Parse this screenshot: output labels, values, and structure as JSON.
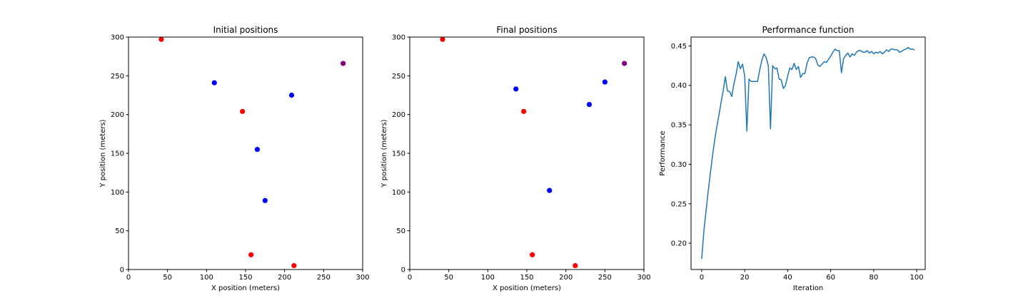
{
  "chart_data": [
    {
      "type": "scatter",
      "title": "Initial positions",
      "xlabel": "X position (meters)",
      "ylabel": "Y position (meters)",
      "xlim": [
        0,
        300
      ],
      "ylim": [
        0,
        300
      ],
      "xticks": [
        0,
        50,
        100,
        150,
        200,
        250,
        300
      ],
      "yticks": [
        0,
        50,
        100,
        150,
        200,
        250,
        300
      ],
      "grid": false,
      "series": [
        {
          "color": "#ff0000",
          "points": [
            [
              42,
              297
            ],
            [
              146,
              204
            ],
            [
              157,
              19
            ],
            [
              212,
              5
            ]
          ]
        },
        {
          "color": "#0000ff",
          "points": [
            [
              110,
              241
            ],
            [
              165,
              155
            ],
            [
              175,
              89
            ],
            [
              209,
              225
            ]
          ]
        },
        {
          "color": "#800080",
          "points": [
            [
              275,
              266
            ]
          ]
        }
      ]
    },
    {
      "type": "scatter",
      "title": "Final positions",
      "xlabel": "X position (meters)",
      "ylabel": "Y position (meters)",
      "xlim": [
        0,
        300
      ],
      "ylim": [
        0,
        300
      ],
      "xticks": [
        0,
        50,
        100,
        150,
        200,
        250,
        300
      ],
      "yticks": [
        0,
        50,
        100,
        150,
        200,
        250,
        300
      ],
      "grid": false,
      "series": [
        {
          "color": "#ff0000",
          "points": [
            [
              42,
              297
            ],
            [
              146,
              204
            ],
            [
              157,
              19
            ],
            [
              212,
              5
            ]
          ]
        },
        {
          "color": "#0000ff",
          "points": [
            [
              136,
              233
            ],
            [
              179,
              102
            ],
            [
              230,
              213
            ],
            [
              250,
              242
            ]
          ]
        },
        {
          "color": "#800080",
          "points": [
            [
              275,
              266
            ]
          ]
        }
      ]
    },
    {
      "type": "line",
      "title": "Performance function",
      "xlabel": "Iteration",
      "ylabel": "Performance",
      "xlim": [
        -4.95,
        103.95
      ],
      "ylim": [
        0.1667,
        0.4612
      ],
      "xticks": [
        0,
        20,
        40,
        60,
        80,
        100
      ],
      "yticks": [
        0.2,
        0.25,
        0.3,
        0.35,
        0.4,
        0.45
      ],
      "ytick_labels": [
        "0.20",
        "0.25",
        "0.30",
        "0.35",
        "0.40",
        "0.45"
      ],
      "grid": false,
      "series": [
        {
          "color": "#1f77b4",
          "x": [
            0,
            1,
            2,
            3,
            4,
            5,
            6,
            7,
            8,
            9,
            10,
            11,
            12,
            13,
            14,
            15,
            16,
            17,
            18,
            19,
            20,
            21,
            22,
            23,
            24,
            25,
            26,
            27,
            28,
            29,
            30,
            31,
            32,
            33,
            34,
            35,
            36,
            37,
            38,
            39,
            40,
            41,
            42,
            43,
            44,
            45,
            46,
            47,
            48,
            49,
            50,
            51,
            52,
            53,
            54,
            55,
            56,
            57,
            58,
            59,
            60,
            61,
            62,
            63,
            64,
            65,
            66,
            67,
            68,
            69,
            70,
            71,
            72,
            73,
            74,
            75,
            76,
            77,
            78,
            79,
            80,
            81,
            82,
            83,
            84,
            85,
            86,
            87,
            88,
            89,
            90,
            91,
            92,
            93,
            94,
            95,
            96,
            97,
            98,
            99
          ],
          "y": [
            0.18,
            0.215,
            0.24,
            0.265,
            0.288,
            0.31,
            0.33,
            0.347,
            0.362,
            0.378,
            0.393,
            0.411,
            0.393,
            0.392,
            0.386,
            0.402,
            0.414,
            0.43,
            0.421,
            0.427,
            0.412,
            0.342,
            0.408,
            0.405,
            0.405,
            0.405,
            0.405,
            0.42,
            0.432,
            0.44,
            0.435,
            0.425,
            0.345,
            0.425,
            0.421,
            0.422,
            0.408,
            0.407,
            0.396,
            0.4,
            0.412,
            0.422,
            0.42,
            0.428,
            0.42,
            0.424,
            0.41,
            0.415,
            0.415,
            0.428,
            0.435,
            0.436,
            0.436,
            0.434,
            0.426,
            0.424,
            0.427,
            0.43,
            0.429,
            0.433,
            0.437,
            0.442,
            0.446,
            0.444,
            0.444,
            0.416,
            0.434,
            0.438,
            0.441,
            0.436,
            0.44,
            0.438,
            0.442,
            0.444,
            0.444,
            0.442,
            0.442,
            0.444,
            0.441,
            0.443,
            0.44,
            0.442,
            0.441,
            0.443,
            0.44,
            0.442,
            0.445,
            0.443,
            0.446,
            0.446,
            0.445,
            0.445,
            0.442,
            0.443,
            0.445,
            0.446,
            0.448,
            0.446,
            0.446,
            0.445
          ]
        }
      ]
    }
  ]
}
